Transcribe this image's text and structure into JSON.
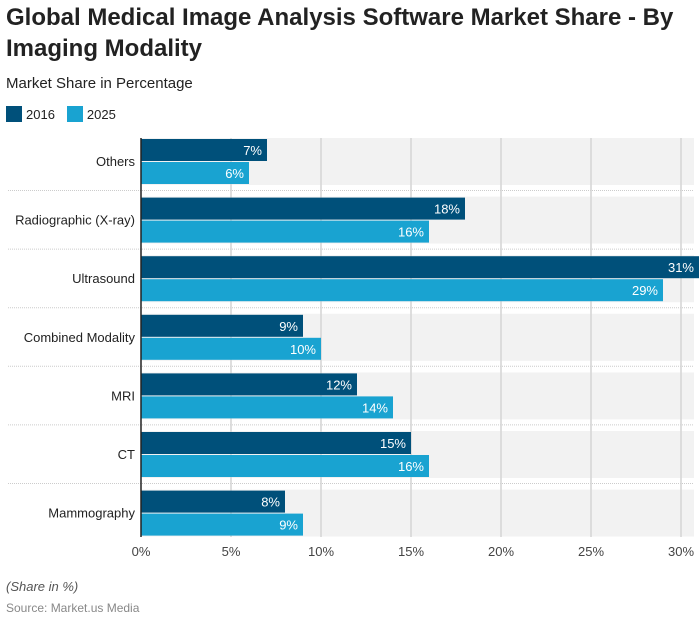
{
  "title": "Global Medical Image Analysis Software Market Share - By Imaging Modality",
  "subtitle": "Market Share in Percentage",
  "note": "(Share in %)",
  "source": "Source: Market.us Media",
  "chart_data": {
    "type": "bar",
    "orientation": "horizontal",
    "categories": [
      "Others",
      "Radiographic (X-ray)",
      "Ultrasound",
      "Combined Modality",
      "MRI",
      "CT",
      "Mammography"
    ],
    "series": [
      {
        "name": "2016",
        "color": "#00507a",
        "values": [
          7,
          18,
          31,
          9,
          12,
          15,
          8
        ]
      },
      {
        "name": "2025",
        "color": "#19a3d1",
        "values": [
          6,
          16,
          29,
          10,
          14,
          16,
          9
        ]
      }
    ],
    "xlim": [
      0,
      31
    ],
    "xticks": [
      0,
      5,
      10,
      15,
      20,
      25,
      30
    ],
    "tick_suffix": "%",
    "grid": true,
    "legend": "top-left"
  }
}
